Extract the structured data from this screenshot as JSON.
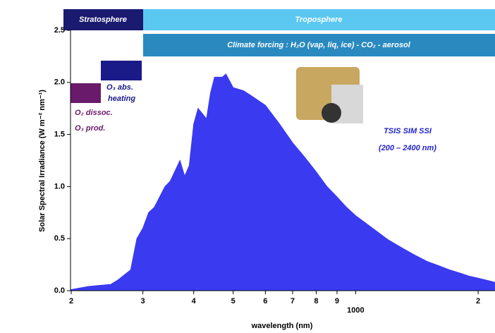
{
  "chart_data": {
    "type": "area",
    "xlabel": "wavelength (nm)",
    "ylabel": "Solar Spectral Irradiance (W m⁻² nm⁻¹)",
    "x": [
      200,
      220,
      250,
      260,
      280,
      290,
      300,
      310,
      320,
      340,
      350,
      370,
      380,
      390,
      400,
      410,
      420,
      430,
      440,
      450,
      470,
      480,
      500,
      530,
      550,
      600,
      650,
      700,
      750,
      800,
      850,
      900,
      950,
      1000,
      1100,
      1200,
      1300,
      1400,
      1500,
      1600,
      1700,
      1800,
      1900,
      2000,
      2100,
      2200
    ],
    "values": [
      0.01,
      0.04,
      0.06,
      0.1,
      0.2,
      0.5,
      0.6,
      0.75,
      0.8,
      1.0,
      1.05,
      1.25,
      1.1,
      1.2,
      1.6,
      1.75,
      1.7,
      1.65,
      1.9,
      2.05,
      2.05,
      2.08,
      1.95,
      1.92,
      1.88,
      1.78,
      1.6,
      1.42,
      1.28,
      1.14,
      1.0,
      0.9,
      0.8,
      0.72,
      0.6,
      0.49,
      0.41,
      0.34,
      0.28,
      0.24,
      0.2,
      0.17,
      0.14,
      0.12,
      0.1,
      0.08
    ],
    "color": "#3a3af0",
    "log_x": true,
    "xlim": [
      200,
      2200
    ],
    "ylim": [
      0,
      2.5
    ],
    "xticks": [
      {
        "value": 200,
        "label": "2"
      },
      {
        "value": 300,
        "label": "3"
      },
      {
        "value": 400,
        "label": "4"
      },
      {
        "value": 500,
        "label": "5"
      },
      {
        "value": 600,
        "label": "6"
      },
      {
        "value": 700,
        "label": "7"
      },
      {
        "value": 800,
        "label": "8"
      },
      {
        "value": 900,
        "label": "9"
      },
      1000,
      {
        "value": 2000,
        "label": "2"
      }
    ],
    "yticks": [
      {
        "value": 0,
        "label": "0.0"
      },
      0.5,
      {
        "value": 1,
        "label": "1.0"
      },
      1.5,
      {
        "value": 2,
        "label": "2.0"
      },
      2.5
    ],
    "annotations": [
      "Stratosphere",
      "Troposphere",
      "Climate forcing : H₂O (vap, liq, ice) - CO₂ - aerosol",
      "O₃ abs.",
      "heating",
      "O₂ dissoc.",
      "O₃ prod.",
      "TSIS SIM SSI",
      "(200 – 2400 nm)"
    ]
  }
}
